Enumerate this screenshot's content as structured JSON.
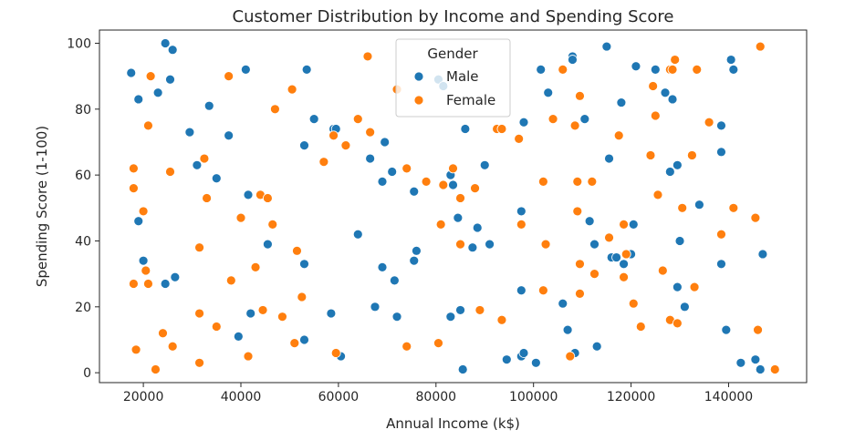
{
  "chart_data": {
    "type": "scatter",
    "title": "Customer Distribution by Income and Spending Score",
    "xlabel": "Annual Income (k$)",
    "ylabel": "Spending Score (1-100)",
    "xlim": [
      11000,
      156000
    ],
    "ylim": [
      -3,
      104
    ],
    "x_ticks": [
      20000,
      40000,
      60000,
      80000,
      100000,
      120000,
      140000
    ],
    "x_tick_labels": [
      "20000",
      "40000",
      "60000",
      "80000",
      "100000",
      "120000",
      "140000"
    ],
    "y_ticks": [
      0,
      20,
      40,
      60,
      80,
      100
    ],
    "y_tick_labels": [
      "0",
      "20",
      "40",
      "60",
      "80",
      "100"
    ],
    "grid": false,
    "legend": {
      "title": "Gender",
      "placement": "top-center",
      "entries": [
        {
          "label": "Male",
          "color": "#1f77b4"
        },
        {
          "label": "Female",
          "color": "#ff7f0e"
        }
      ]
    },
    "series": [
      {
        "name": "Male",
        "color": "#1f77b4",
        "points": [
          [
            17500,
            91
          ],
          [
            19000,
            83
          ],
          [
            19000,
            46
          ],
          [
            20000,
            34
          ],
          [
            23000,
            85
          ],
          [
            24500,
            100
          ],
          [
            25500,
            89
          ],
          [
            26000,
            98
          ],
          [
            26500,
            29
          ],
          [
            24500,
            27
          ],
          [
            29500,
            73
          ],
          [
            31000,
            63
          ],
          [
            33500,
            81
          ],
          [
            35000,
            59
          ],
          [
            37500,
            72
          ],
          [
            39500,
            11
          ],
          [
            41000,
            92
          ],
          [
            41500,
            54
          ],
          [
            42000,
            18
          ],
          [
            45500,
            39
          ],
          [
            53000,
            69
          ],
          [
            53500,
            92
          ],
          [
            55000,
            77
          ],
          [
            59000,
            74
          ],
          [
            59500,
            74
          ],
          [
            53000,
            33
          ],
          [
            53000,
            10
          ],
          [
            58500,
            18
          ],
          [
            60500,
            5
          ],
          [
            64000,
            42
          ],
          [
            66500,
            65
          ],
          [
            67500,
            20
          ],
          [
            69000,
            58
          ],
          [
            69000,
            32
          ],
          [
            69500,
            70
          ],
          [
            71000,
            61
          ],
          [
            71500,
            28
          ],
          [
            72000,
            17
          ],
          [
            75500,
            55
          ],
          [
            76000,
            37
          ],
          [
            75500,
            34
          ],
          [
            80500,
            89
          ],
          [
            81500,
            87
          ],
          [
            83000,
            60
          ],
          [
            83500,
            57
          ],
          [
            83000,
            17
          ],
          [
            84500,
            47
          ],
          [
            85000,
            19
          ],
          [
            85500,
            1
          ],
          [
            86000,
            74
          ],
          [
            87500,
            38
          ],
          [
            88500,
            44
          ],
          [
            90000,
            63
          ],
          [
            91000,
            39
          ],
          [
            94500,
            4
          ],
          [
            97500,
            49
          ],
          [
            98000,
            76
          ],
          [
            97500,
            25
          ],
          [
            97500,
            5
          ],
          [
            98000,
            6
          ],
          [
            100500,
            3
          ],
          [
            101500,
            92
          ],
          [
            103000,
            85
          ],
          [
            106000,
            21
          ],
          [
            107000,
            13
          ],
          [
            108000,
            96
          ],
          [
            108000,
            95
          ],
          [
            108500,
            6
          ],
          [
            110500,
            77
          ],
          [
            111500,
            46
          ],
          [
            112500,
            39
          ],
          [
            113000,
            8
          ],
          [
            115000,
            99
          ],
          [
            115500,
            65
          ],
          [
            116000,
            35
          ],
          [
            117000,
            35
          ],
          [
            118000,
            82
          ],
          [
            118500,
            33
          ],
          [
            120000,
            36
          ],
          [
            121000,
            93
          ],
          [
            120500,
            45
          ],
          [
            125000,
            92
          ],
          [
            127000,
            85
          ],
          [
            128000,
            61
          ],
          [
            128500,
            83
          ],
          [
            129500,
            26
          ],
          [
            129500,
            63
          ],
          [
            130000,
            40
          ],
          [
            131000,
            20
          ],
          [
            134000,
            51
          ],
          [
            138500,
            75
          ],
          [
            138500,
            67
          ],
          [
            138500,
            33
          ],
          [
            139500,
            13
          ],
          [
            140500,
            95
          ],
          [
            141000,
            92
          ],
          [
            142500,
            3
          ],
          [
            145500,
            4
          ],
          [
            146500,
            1
          ],
          [
            147000,
            36
          ]
        ]
      },
      {
        "name": "Female",
        "color": "#ff7f0e",
        "points": [
          [
            18000,
            62
          ],
          [
            18000,
            56
          ],
          [
            18000,
            27
          ],
          [
            18500,
            7
          ],
          [
            20000,
            49
          ],
          [
            20500,
            31
          ],
          [
            21000,
            27
          ],
          [
            21000,
            75
          ],
          [
            21500,
            90
          ],
          [
            22500,
            1
          ],
          [
            24000,
            12
          ],
          [
            25500,
            61
          ],
          [
            26000,
            8
          ],
          [
            31500,
            38
          ],
          [
            31500,
            18
          ],
          [
            31500,
            3
          ],
          [
            32500,
            65
          ],
          [
            33000,
            53
          ],
          [
            35000,
            14
          ],
          [
            37500,
            90
          ],
          [
            38000,
            28
          ],
          [
            40000,
            47
          ],
          [
            41500,
            5
          ],
          [
            43000,
            32
          ],
          [
            44000,
            54
          ],
          [
            44500,
            19
          ],
          [
            45500,
            53
          ],
          [
            46500,
            45
          ],
          [
            47000,
            80
          ],
          [
            48500,
            17
          ],
          [
            50500,
            86
          ],
          [
            51000,
            9
          ],
          [
            51500,
            37
          ],
          [
            52500,
            23
          ],
          [
            57000,
            64
          ],
          [
            59000,
            72
          ],
          [
            59500,
            6
          ],
          [
            61500,
            69
          ],
          [
            64000,
            77
          ],
          [
            66000,
            96
          ],
          [
            66500,
            73
          ],
          [
            72000,
            86
          ],
          [
            74000,
            62
          ],
          [
            74000,
            8
          ],
          [
            78000,
            58
          ],
          [
            80500,
            9
          ],
          [
            81000,
            45
          ],
          [
            81500,
            57
          ],
          [
            83500,
            62
          ],
          [
            85000,
            53
          ],
          [
            85000,
            39
          ],
          [
            88000,
            56
          ],
          [
            89000,
            19
          ],
          [
            92500,
            74
          ],
          [
            93500,
            74
          ],
          [
            93500,
            16
          ],
          [
            97000,
            71
          ],
          [
            97500,
            45
          ],
          [
            102000,
            58
          ],
          [
            102000,
            25
          ],
          [
            102500,
            39
          ],
          [
            102500,
            39
          ],
          [
            104000,
            77
          ],
          [
            106000,
            92
          ],
          [
            107500,
            5
          ],
          [
            108500,
            75
          ],
          [
            109000,
            58
          ],
          [
            109000,
            49
          ],
          [
            109500,
            33
          ],
          [
            109500,
            24
          ],
          [
            109500,
            84
          ],
          [
            112000,
            58
          ],
          [
            112500,
            30
          ],
          [
            115500,
            41
          ],
          [
            117500,
            72
          ],
          [
            118500,
            45
          ],
          [
            118500,
            29
          ],
          [
            119000,
            36
          ],
          [
            120500,
            21
          ],
          [
            122000,
            14
          ],
          [
            124000,
            66
          ],
          [
            124500,
            87
          ],
          [
            125000,
            78
          ],
          [
            125500,
            54
          ],
          [
            126500,
            31
          ],
          [
            128000,
            92
          ],
          [
            128000,
            16
          ],
          [
            128500,
            92
          ],
          [
            129000,
            95
          ],
          [
            129500,
            15
          ],
          [
            130500,
            50
          ],
          [
            132500,
            66
          ],
          [
            133000,
            26
          ],
          [
            133500,
            92
          ],
          [
            136000,
            76
          ],
          [
            138500,
            42
          ],
          [
            141000,
            50
          ],
          [
            145500,
            47
          ],
          [
            146000,
            13
          ],
          [
            146500,
            99
          ],
          [
            149500,
            1
          ]
        ]
      }
    ]
  }
}
